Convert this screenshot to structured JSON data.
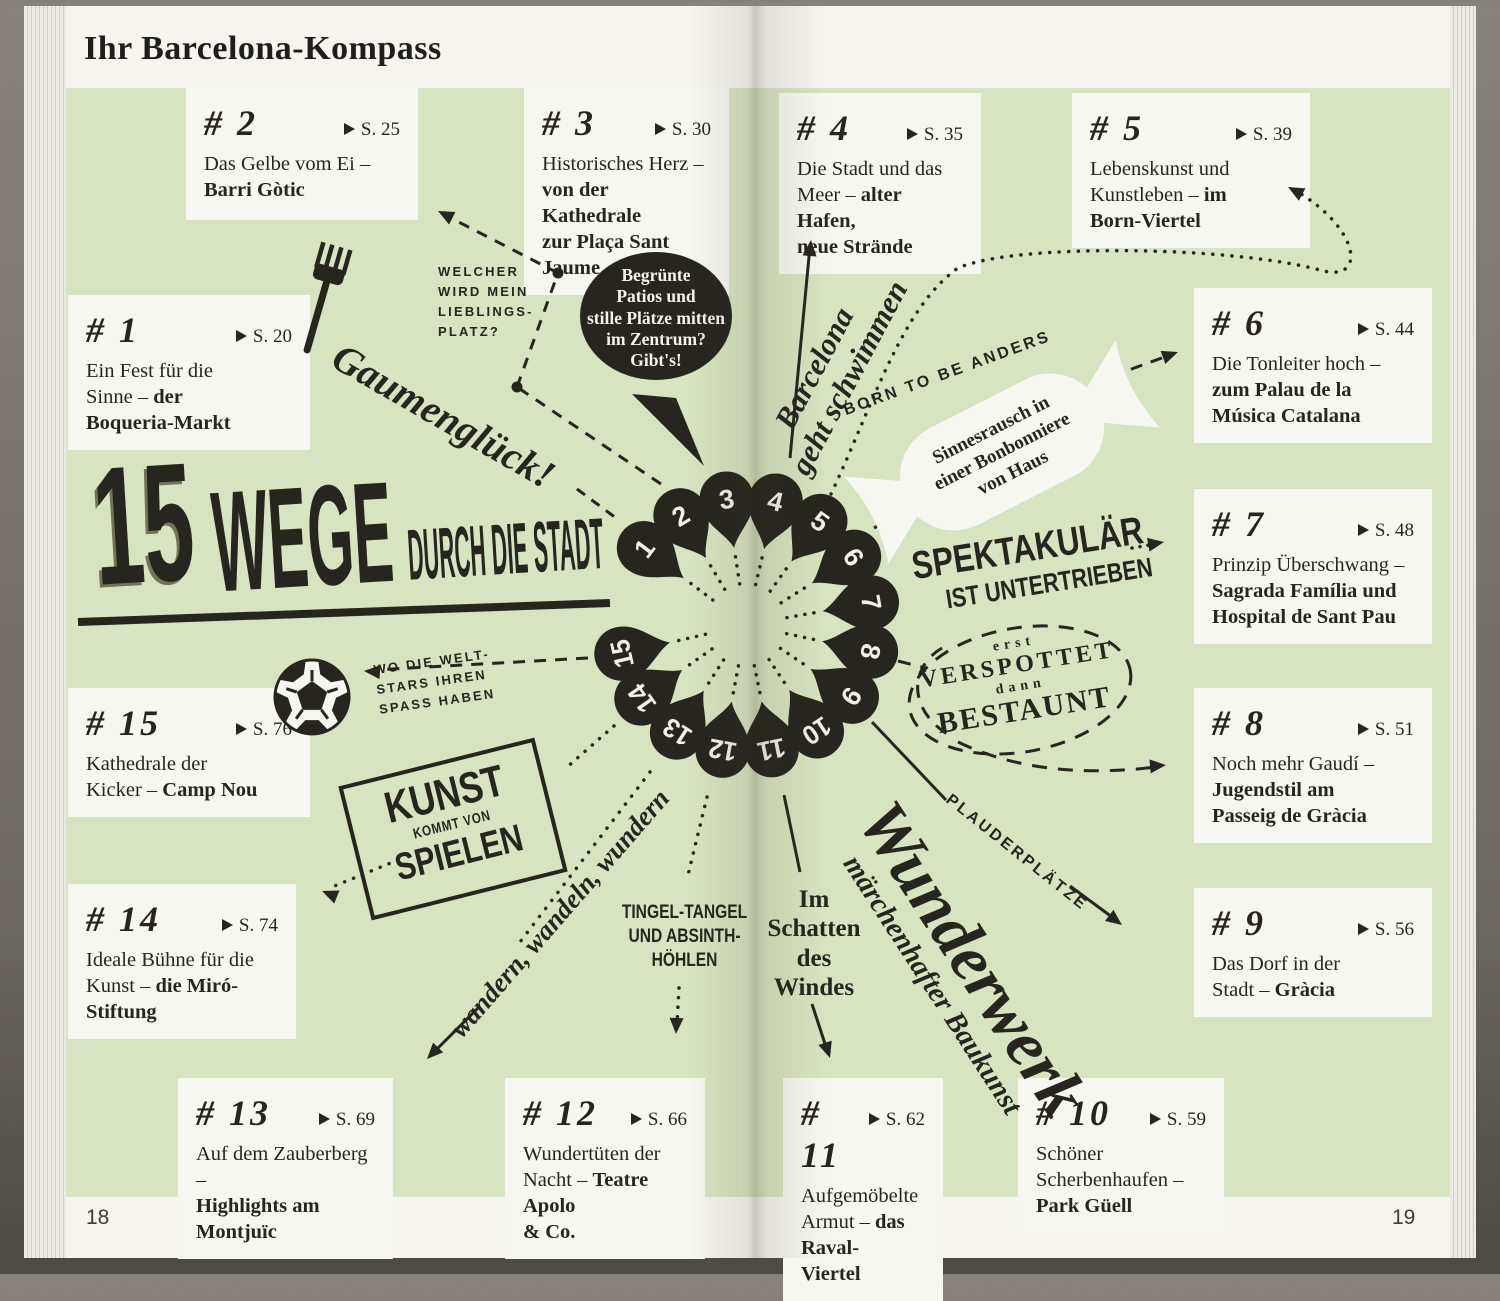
{
  "book": {
    "title": "Ihr Barcelona-Kompass",
    "page_left": "18",
    "page_right": "19"
  },
  "colors": {
    "green": "#d8e3c1",
    "ink": "#26261f",
    "paper": "#f7f7f2"
  },
  "headline": {
    "number": "15",
    "word": "WEGE",
    "rest": "DURCH DIE STADT"
  },
  "hub": {
    "pins": [
      "1",
      "2",
      "3",
      "4",
      "5",
      "6",
      "7",
      "8",
      "9",
      "10",
      "11",
      "12",
      "13",
      "14",
      "15"
    ]
  },
  "cards": [
    {
      "id": 1,
      "num": "#1",
      "ref": "S. 20",
      "lines": [
        [
          {
            "t": "Ein Fest für die"
          }
        ],
        [
          {
            "t": "Sinne – "
          },
          {
            "t": "der",
            "b": true
          }
        ],
        [
          {
            "t": "Boqueria-Markt",
            "b": true
          }
        ]
      ]
    },
    {
      "id": 2,
      "num": "#2",
      "ref": "S. 25",
      "lines": [
        [
          {
            "t": "Das Gelbe vom Ei –"
          }
        ],
        [
          {
            "t": "Barri Gòtic",
            "b": true
          }
        ]
      ]
    },
    {
      "id": 3,
      "num": "#3",
      "ref": "S. 30",
      "lines": [
        [
          {
            "t": "Historisches Herz –"
          }
        ],
        [
          {
            "t": "von der Kathedrale",
            "b": true
          }
        ],
        [
          {
            "t": "zur Plaça Sant Jaume",
            "b": true
          }
        ]
      ]
    },
    {
      "id": 4,
      "num": "#4",
      "ref": "S. 35",
      "lines": [
        [
          {
            "t": "Die Stadt und das"
          }
        ],
        [
          {
            "t": "Meer – "
          },
          {
            "t": "alter Hafen,",
            "b": true
          }
        ],
        [
          {
            "t": "neue Strände",
            "b": true
          }
        ]
      ]
    },
    {
      "id": 5,
      "num": "#5",
      "ref": "S. 39",
      "lines": [
        [
          {
            "t": "Lebenskunst und"
          }
        ],
        [
          {
            "t": "Kunstleben – "
          },
          {
            "t": "im",
            "b": true
          }
        ],
        [
          {
            "t": "Born-Viertel",
            "b": true
          }
        ]
      ]
    },
    {
      "id": 6,
      "num": "#6",
      "ref": "S. 44",
      "lines": [
        [
          {
            "t": "Die Tonleiter hoch –"
          }
        ],
        [
          {
            "t": "zum Palau de la",
            "b": true
          }
        ],
        [
          {
            "t": "Música Catalana",
            "b": true
          }
        ]
      ]
    },
    {
      "id": 7,
      "num": "#7",
      "ref": "S. 48",
      "lines": [
        [
          {
            "t": "Prinzip Überschwang –"
          }
        ],
        [
          {
            "t": "Sagrada Família und",
            "b": true
          }
        ],
        [
          {
            "t": "Hospital de Sant Pau",
            "b": true
          }
        ]
      ]
    },
    {
      "id": 8,
      "num": "#8",
      "ref": "S. 51",
      "lines": [
        [
          {
            "t": "Noch mehr Gaudí –"
          }
        ],
        [
          {
            "t": "Jugendstil am",
            "b": true
          }
        ],
        [
          {
            "t": "Passeig de Gràcia",
            "b": true
          }
        ]
      ]
    },
    {
      "id": 9,
      "num": "#9",
      "ref": "S. 56",
      "lines": [
        [
          {
            "t": "Das Dorf in der"
          }
        ],
        [
          {
            "t": "Stadt – "
          },
          {
            "t": "Gràcia",
            "b": true
          }
        ]
      ]
    },
    {
      "id": 10,
      "num": "#10",
      "ref": "S. 59",
      "lines": [
        [
          {
            "t": "Schöner"
          }
        ],
        [
          {
            "t": "Scherbenhaufen –"
          }
        ],
        [
          {
            "t": "Park Güell",
            "b": true
          }
        ]
      ]
    },
    {
      "id": 11,
      "num": "#11",
      "ref": "S. 62",
      "lines": [
        [
          {
            "t": "Aufgemöbelte"
          }
        ],
        [
          {
            "t": "Armut – "
          },
          {
            "t": "das Raval-",
            "b": true
          }
        ],
        [
          {
            "t": "Viertel",
            "b": true
          }
        ]
      ]
    },
    {
      "id": 12,
      "num": "#12",
      "ref": "S. 66",
      "lines": [
        [
          {
            "t": "Wundertüten der"
          }
        ],
        [
          {
            "t": "Nacht – "
          },
          {
            "t": "Teatre Apolo",
            "b": true
          }
        ],
        [
          {
            "t": "& Co.",
            "b": true
          }
        ]
      ]
    },
    {
      "id": 13,
      "num": "#13",
      "ref": "S. 69",
      "lines": [
        [
          {
            "t": "Auf dem Zauberberg –"
          }
        ],
        [
          {
            "t": "Highlights am",
            "b": true
          }
        ],
        [
          {
            "t": "Montjuïc",
            "b": true
          }
        ]
      ]
    },
    {
      "id": 14,
      "num": "#14",
      "ref": "S. 74",
      "lines": [
        [
          {
            "t": "Ideale Bühne für die"
          }
        ],
        [
          {
            "t": "Kunst – "
          },
          {
            "t": "die Miró-",
            "b": true
          }
        ],
        [
          {
            "t": "Stiftung",
            "b": true
          }
        ]
      ]
    },
    {
      "id": 15,
      "num": "#15",
      "ref": "S. 76",
      "lines": [
        [
          {
            "t": "Kathedrale der"
          }
        ],
        [
          {
            "t": "Kicker – "
          },
          {
            "t": "Camp Nou",
            "b": true
          }
        ]
      ]
    }
  ],
  "annotations": {
    "welcher": [
      "WELCHER",
      "WIRD MEIN",
      "LIEBLINGS-",
      "PLATZ?"
    ],
    "gaumenglueck": "Gaumenglück!",
    "bubble": [
      "Begrünte",
      "Patios und",
      "stille Plätze mitten",
      "im Zentrum?",
      "Gibt's!"
    ],
    "barcelona": [
      "Barcelona",
      "geht schwimmen"
    ],
    "born": "BORN TO BE ANDERS",
    "candy": [
      "Sinnesrausch in",
      "einer Bonbonniere",
      "von Haus"
    ],
    "spektakulaer": [
      "SPEKTAKULÄR",
      "IST UNTERTRIEBEN"
    ],
    "verspottet": [
      "erst",
      "VERSPOTTET",
      "dann",
      "BESTAUNT"
    ],
    "plauderplaetze": "PLAUDERPLÄTZE",
    "wunderwerk": [
      "Wunderwerk",
      "märchenhafter Baukunst"
    ],
    "im_schatten": [
      "Im",
      "Schatten",
      "des",
      "Windes"
    ],
    "tingel": [
      "TINGEL-TANGEL",
      "UND ABSINTH-",
      "HÖHLEN"
    ],
    "wandern": "wandern, wandeln, wundern",
    "weltstars": [
      "WO DIE WELT-",
      "STARS IHREN",
      "SPASS HABEN"
    ],
    "kunst": [
      "KUNST",
      "KOMMT VON",
      "SPIELEN"
    ]
  }
}
